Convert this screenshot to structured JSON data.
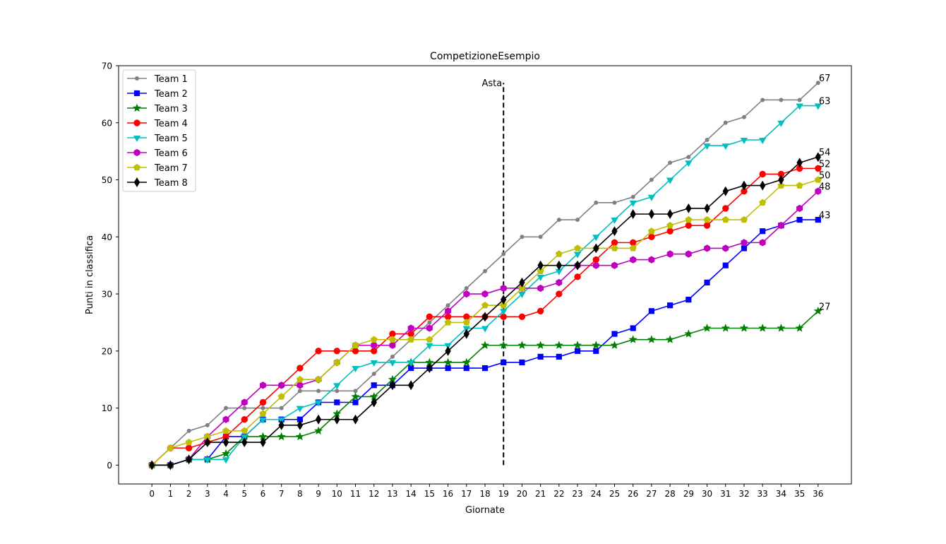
{
  "chart_data": {
    "type": "line",
    "title": "CompetizioneEsempio",
    "xlabel": "Giornate",
    "ylabel": "Punti in classifica",
    "xlim": [
      -1.8,
      37.8
    ],
    "ylim": [
      -3.3,
      70
    ],
    "xticks": [
      0,
      1,
      2,
      3,
      4,
      5,
      6,
      7,
      8,
      9,
      10,
      11,
      12,
      13,
      14,
      15,
      16,
      17,
      18,
      19,
      20,
      21,
      22,
      23,
      24,
      25,
      26,
      27,
      28,
      29,
      30,
      31,
      32,
      33,
      34,
      35,
      36
    ],
    "yticks": [
      0,
      10,
      20,
      30,
      40,
      50,
      60,
      70
    ],
    "grid": false,
    "legend": "top-left",
    "annotation": {
      "label": "Asta",
      "x": 19,
      "y_from": 0,
      "y_to": 67,
      "style": "dashed",
      "color": "#000000"
    },
    "x": [
      0,
      1,
      2,
      3,
      4,
      5,
      6,
      7,
      8,
      9,
      10,
      11,
      12,
      13,
      14,
      15,
      16,
      17,
      18,
      19,
      20,
      21,
      22,
      23,
      24,
      25,
      26,
      27,
      28,
      29,
      30,
      31,
      32,
      33,
      34,
      35,
      36
    ],
    "series": [
      {
        "name": "Team 1",
        "color": "#808080",
        "marker": "point",
        "values": [
          0,
          3,
          6,
          7,
          10,
          10,
          10,
          10,
          13,
          13,
          13,
          13,
          16,
          19,
          22,
          25,
          28,
          31,
          34,
          37,
          40,
          40,
          43,
          43,
          46,
          46,
          47,
          50,
          53,
          54,
          57,
          60,
          61,
          64,
          64,
          64,
          67
        ]
      },
      {
        "name": "Team 2",
        "color": "#0000ff",
        "marker": "square",
        "values": [
          0,
          0,
          1,
          1,
          5,
          5,
          8,
          8,
          8,
          11,
          11,
          11,
          14,
          14,
          17,
          17,
          17,
          17,
          17,
          18,
          18,
          19,
          19,
          20,
          20,
          23,
          24,
          27,
          28,
          29,
          32,
          35,
          38,
          41,
          42,
          43,
          43
        ]
      },
      {
        "name": "Team 3",
        "color": "#008000",
        "marker": "star",
        "values": [
          0,
          0,
          1,
          1,
          2,
          5,
          5,
          5,
          5,
          6,
          9,
          12,
          12,
          15,
          18,
          18,
          18,
          18,
          21,
          21,
          21,
          21,
          21,
          21,
          21,
          21,
          22,
          22,
          22,
          23,
          24,
          24,
          24,
          24,
          24,
          24,
          27
        ]
      },
      {
        "name": "Team 4",
        "color": "#ff0000",
        "marker": "circle",
        "values": [
          0,
          3,
          3,
          4,
          5,
          8,
          11,
          14,
          17,
          20,
          20,
          20,
          20,
          23,
          23,
          26,
          26,
          26,
          26,
          26,
          26,
          27,
          30,
          33,
          36,
          39,
          39,
          40,
          41,
          42,
          42,
          45,
          48,
          51,
          51,
          52,
          52
        ]
      },
      {
        "name": "Team 5",
        "color": "#00bfbf",
        "marker": "triangle-down",
        "values": [
          0,
          0,
          1,
          1,
          1,
          5,
          8,
          8,
          10,
          11,
          14,
          17,
          18,
          18,
          18,
          21,
          21,
          24,
          24,
          27,
          30,
          33,
          34,
          37,
          40,
          43,
          46,
          47,
          50,
          53,
          56,
          56,
          57,
          57,
          60,
          63,
          63
        ]
      },
      {
        "name": "Team 6",
        "color": "#bf00bf",
        "marker": "hexagon",
        "values": [
          0,
          0,
          1,
          5,
          8,
          11,
          14,
          14,
          14,
          15,
          18,
          21,
          21,
          21,
          24,
          24,
          27,
          30,
          30,
          31,
          31,
          31,
          32,
          35,
          35,
          35,
          36,
          36,
          37,
          37,
          38,
          38,
          39,
          39,
          42,
          45,
          48
        ]
      },
      {
        "name": "Team 7",
        "color": "#bfbf00",
        "marker": "pentagon",
        "values": [
          0,
          3,
          4,
          5,
          6,
          6,
          9,
          12,
          15,
          15,
          18,
          21,
          22,
          22,
          22,
          22,
          25,
          25,
          28,
          28,
          31,
          34,
          37,
          38,
          38,
          38,
          38,
          41,
          42,
          43,
          43,
          43,
          43,
          46,
          49,
          49,
          50
        ]
      },
      {
        "name": "Team 8",
        "color": "#000000",
        "marker": "diamond",
        "values": [
          0,
          0,
          1,
          4,
          4,
          4,
          4,
          7,
          7,
          8,
          8,
          8,
          11,
          14,
          14,
          17,
          20,
          23,
          26,
          29,
          32,
          35,
          35,
          35,
          38,
          41,
          44,
          44,
          44,
          45,
          45,
          48,
          49,
          49,
          50,
          53,
          54
        ]
      }
    ],
    "end_labels": [
      "67",
      "63",
      "54",
      "52",
      "50",
      "48",
      "43",
      "27"
    ]
  }
}
